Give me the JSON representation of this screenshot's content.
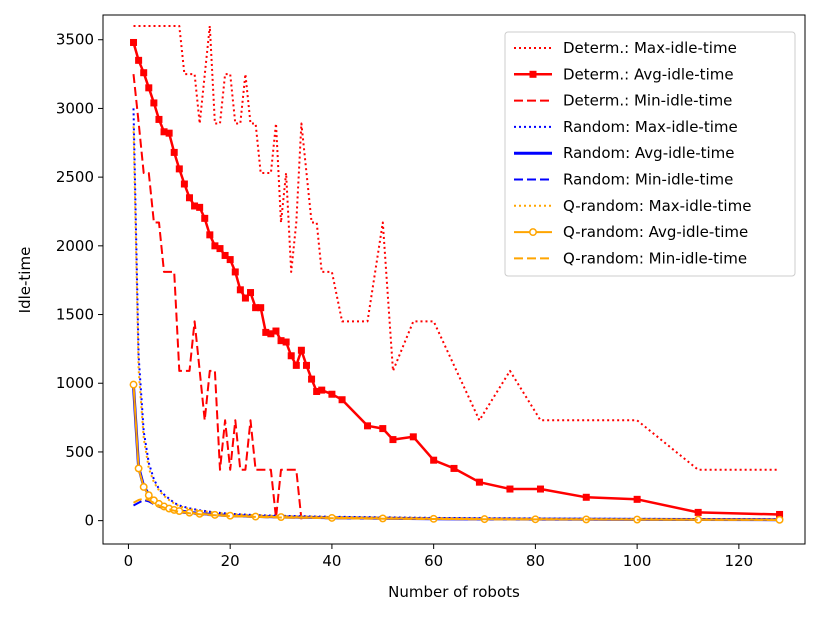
{
  "chart_data": {
    "type": "line",
    "title": "",
    "xlabel": "Number of robots",
    "ylabel": "Idle-time",
    "xlim": [
      -5,
      133
    ],
    "ylim": [
      -170,
      3680
    ],
    "xticks": [
      0,
      20,
      40,
      60,
      80,
      100,
      120
    ],
    "yticks": [
      0,
      500,
      1000,
      1500,
      2000,
      2500,
      3000,
      3500
    ],
    "legend_position": "top-right",
    "series": [
      {
        "name": "Determ.: Max-idle-time",
        "color": "#ff0000",
        "dash": "dotted",
        "width": 2,
        "marker": "none",
        "x": [
          1,
          2,
          3,
          5,
          7,
          9,
          10,
          11,
          13,
          14,
          16,
          17,
          18,
          19,
          20,
          21,
          22,
          23,
          24,
          25,
          26,
          27,
          28,
          29,
          30,
          31,
          32,
          33,
          34,
          35,
          36,
          37,
          38,
          40,
          42,
          47,
          50,
          52,
          56,
          60,
          69,
          75,
          81,
          90,
          100,
          112,
          128
        ],
        "y": [
          3600,
          3600,
          3600,
          3600,
          3600,
          3600,
          3600,
          3250,
          3250,
          2890,
          3600,
          2890,
          2890,
          3250,
          3250,
          2890,
          2890,
          3250,
          2890,
          2890,
          2530,
          2530,
          2530,
          2890,
          2170,
          2530,
          1810,
          2170,
          2890,
          2530,
          2170,
          2170,
          1810,
          1810,
          1450,
          1450,
          2170,
          1090,
          1450,
          1450,
          730,
          1090,
          730,
          730,
          730,
          370,
          370
        ]
      },
      {
        "name": "Determ.: Avg-idle-time",
        "color": "#ff0000",
        "dash": "solid",
        "width": 2.5,
        "marker": "square",
        "x": [
          1,
          2,
          3,
          4,
          5,
          6,
          7,
          8,
          9,
          10,
          11,
          12,
          13,
          14,
          15,
          16,
          17,
          18,
          19,
          20,
          21,
          22,
          23,
          24,
          25,
          26,
          27,
          28,
          29,
          30,
          31,
          32,
          33,
          34,
          35,
          36,
          37,
          38,
          40,
          42,
          47,
          50,
          52,
          56,
          60,
          64,
          69,
          75,
          81,
          90,
          100,
          112,
          128
        ],
        "y": [
          3480,
          3350,
          3260,
          3150,
          3040,
          2920,
          2830,
          2820,
          2680,
          2560,
          2450,
          2350,
          2290,
          2280,
          2200,
          2080,
          2000,
          1980,
          1930,
          1900,
          1810,
          1680,
          1620,
          1660,
          1550,
          1550,
          1370,
          1360,
          1380,
          1310,
          1300,
          1200,
          1130,
          1240,
          1130,
          1030,
          940,
          950,
          920,
          880,
          690,
          670,
          590,
          610,
          440,
          380,
          280,
          230,
          230,
          170,
          155,
          60,
          45
        ]
      },
      {
        "name": "Determ.: Min-idle-time",
        "color": "#ff0000",
        "dash": "dashed",
        "width": 2,
        "marker": "none",
        "x": [
          1,
          2,
          3,
          4,
          5,
          6,
          7,
          8,
          9,
          10,
          11,
          12,
          13,
          14,
          15,
          16,
          17,
          18,
          19,
          20,
          21,
          22,
          23,
          24,
          25,
          26,
          27,
          28,
          29,
          30,
          31,
          32,
          33,
          34
        ],
        "y": [
          3250,
          2900,
          2530,
          2530,
          2170,
          2170,
          1810,
          1810,
          1810,
          1090,
          1090,
          1090,
          1450,
          1090,
          730,
          1090,
          1090,
          370,
          730,
          370,
          730,
          370,
          370,
          730,
          370,
          370,
          370,
          370,
          20,
          370,
          370,
          370,
          370,
          10
        ]
      },
      {
        "name": "Random: Max-idle-time",
        "color": "#0000ff",
        "dash": "dotted",
        "width": 2,
        "marker": "none",
        "x": [
          1,
          2,
          3,
          4,
          5,
          6,
          7,
          8,
          9,
          10,
          12,
          14,
          17,
          20,
          25,
          30,
          40,
          50,
          60,
          70,
          80,
          90,
          100,
          112,
          128
        ],
        "y": [
          3000,
          1200,
          650,
          420,
          300,
          230,
          190,
          160,
          130,
          110,
          90,
          75,
          60,
          50,
          40,
          35,
          28,
          24,
          20,
          18,
          16,
          14,
          13,
          12,
          10
        ]
      },
      {
        "name": "Random: Avg-idle-time",
        "color": "#0000ff",
        "dash": "solid",
        "width": 3,
        "marker": "none",
        "x": [
          1,
          2,
          3,
          4,
          5,
          6,
          7,
          8,
          9,
          10,
          12,
          14,
          17,
          20,
          25,
          30,
          40,
          50,
          60,
          70,
          80,
          90,
          100,
          112,
          128
        ],
        "y": [
          980,
          390,
          250,
          190,
          150,
          125,
          105,
          90,
          80,
          72,
          60,
          52,
          44,
          38,
          31,
          27,
          21,
          17,
          14,
          12,
          11,
          10,
          9,
          8,
          7
        ]
      },
      {
        "name": "Random: Min-idle-time",
        "color": "#0000ff",
        "dash": "dashed",
        "width": 2,
        "marker": "none",
        "x": [
          1,
          2,
          3,
          4,
          5,
          6,
          7,
          8,
          9,
          10,
          12,
          14,
          17,
          20,
          25,
          30,
          40,
          50,
          60,
          70,
          80,
          90,
          100,
          112,
          128
        ],
        "y": [
          110,
          130,
          150,
          140,
          120,
          100,
          90,
          80,
          70,
          62,
          52,
          45,
          38,
          33,
          27,
          23,
          18,
          15,
          12,
          10,
          9,
          8,
          7,
          6,
          5
        ]
      },
      {
        "name": "Q-random: Max-idle-time",
        "color": "#ffa500",
        "dash": "dotted",
        "width": 2,
        "marker": "none",
        "x": [
          1,
          2,
          3,
          4,
          5,
          6,
          7,
          8,
          9,
          10,
          12,
          14,
          17,
          20,
          25,
          30,
          40,
          50,
          60,
          70,
          80,
          90,
          100,
          112,
          128
        ],
        "y": [
          2870,
          1100,
          600,
          380,
          280,
          220,
          180,
          150,
          125,
          105,
          85,
          72,
          58,
          48,
          39,
          34,
          27,
          23,
          19,
          17,
          15,
          13,
          12,
          11,
          9
        ]
      },
      {
        "name": "Q-random: Avg-idle-time",
        "color": "#ffa500",
        "dash": "solid",
        "width": 2,
        "marker": "circle",
        "x": [
          1,
          2,
          3,
          4,
          5,
          6,
          7,
          8,
          9,
          10,
          12,
          14,
          17,
          20,
          25,
          30,
          40,
          50,
          60,
          70,
          80,
          90,
          100,
          112,
          128
        ],
        "y": [
          990,
          380,
          245,
          185,
          148,
          122,
          103,
          88,
          78,
          70,
          58,
          50,
          42,
          36,
          30,
          26,
          20,
          16,
          13,
          11,
          10,
          9,
          8,
          7,
          6
        ]
      },
      {
        "name": "Q-random: Min-idle-time",
        "color": "#ffa500",
        "dash": "dashed",
        "width": 2,
        "marker": "none",
        "x": [
          1,
          2,
          3,
          4,
          5,
          6,
          7,
          8,
          9,
          10,
          12,
          14,
          17,
          20,
          25,
          30,
          40,
          50,
          60,
          70,
          80,
          90,
          100,
          112,
          128
        ],
        "y": [
          130,
          150,
          160,
          150,
          130,
          110,
          95,
          82,
          72,
          64,
          54,
          46,
          39,
          33,
          27,
          23,
          18,
          14,
          12,
          10,
          9,
          8,
          7,
          6,
          5
        ]
      }
    ]
  }
}
